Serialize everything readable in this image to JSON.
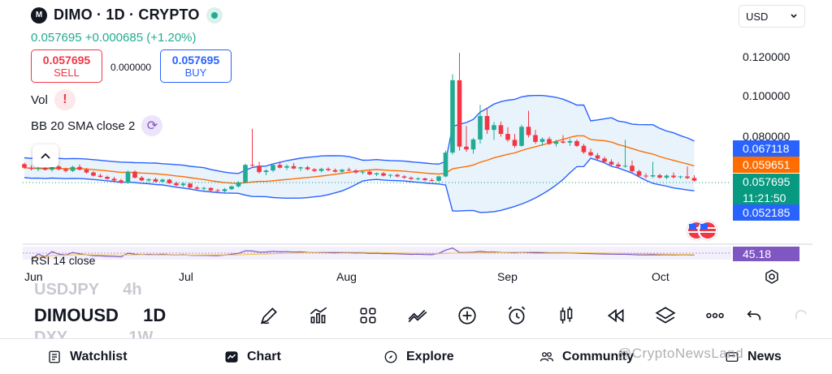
{
  "header": {
    "logo_text": "M",
    "title": "DIMO · 1D · CRYPTO",
    "price_line": "0.057695 +0.000685 (+1.20%)"
  },
  "trade": {
    "sell_value": "0.057695",
    "sell_label": "SELL",
    "spread": "0.000000",
    "buy_value": "0.057695",
    "buy_label": "BUY"
  },
  "indicators": {
    "vol_label": "Vol",
    "bb_label": "BB 20 SMA close 2",
    "rsi_label": "RSI 14 close"
  },
  "currency": {
    "value": "USD"
  },
  "price_axis": {
    "ticks": [
      "0.120000",
      "0.100000",
      "0.080000"
    ],
    "tags": {
      "upper_band": "0.067118",
      "basis": "0.059651",
      "last": "0.057695",
      "countdown": "11:21:50",
      "lower_band": "0.052185",
      "rsi": "45.18"
    }
  },
  "time_axis": {
    "labels": [
      "Jun",
      "Jul",
      "Aug",
      "Sep",
      "Oct"
    ]
  },
  "symbols_list": {
    "prev": "USDJPY",
    "prev_interval": "4h",
    "current": "DIMOUSD",
    "current_interval": "1D",
    "next": "DXY",
    "next_interval": "1W"
  },
  "toolbar": {
    "icons": [
      "pencil-icon",
      "chart-bars-icon",
      "grid-icon",
      "indicators-icon",
      "plus-icon",
      "alarm-icon",
      "candles-icon",
      "replay-icon",
      "layers-icon",
      "more-icon"
    ]
  },
  "bottom_nav": {
    "watchlist": "Watchlist",
    "chart": "Chart",
    "explore": "Explore",
    "community": "Community",
    "news": "News"
  },
  "watermark": "@CryptoNewsLand",
  "colors": {
    "up": "#22ab94",
    "down": "#f23645",
    "band": "#2962ff",
    "basis": "#ff6d00",
    "band_fill": "#e3f0fb",
    "rsi": "#7e57c2"
  },
  "chart_data": {
    "type": "candlestick",
    "x_labels": [
      "Jun",
      "Jul",
      "Aug",
      "Sep",
      "Oct"
    ],
    "y_ticks": [
      0.08,
      0.1,
      0.12
    ],
    "candles": [
      [
        0.066,
        0.0668,
        0.0636,
        0.0642
      ],
      [
        0.0642,
        0.0654,
        0.0628,
        0.0636
      ],
      [
        0.0636,
        0.0648,
        0.0624,
        0.064
      ],
      [
        0.064,
        0.0652,
        0.0628,
        0.0632
      ],
      [
        0.0632,
        0.0656,
        0.0622,
        0.0648
      ],
      [
        0.0648,
        0.0654,
        0.0628,
        0.0634
      ],
      [
        0.0634,
        0.0642,
        0.0618,
        0.0626
      ],
      [
        0.0626,
        0.0652,
        0.062,
        0.0646
      ],
      [
        0.0646,
        0.0658,
        0.0628,
        0.0632
      ],
      [
        0.0632,
        0.064,
        0.0612,
        0.0618
      ],
      [
        0.0618,
        0.0624,
        0.0598,
        0.0602
      ],
      [
        0.0602,
        0.0612,
        0.0592,
        0.0596
      ],
      [
        0.0596,
        0.0602,
        0.0582,
        0.0586
      ],
      [
        0.0586,
        0.0596,
        0.0572,
        0.0578
      ],
      [
        0.0578,
        0.0586,
        0.0562,
        0.0566
      ],
      [
        0.0566,
        0.0628,
        0.056,
        0.0622
      ],
      [
        0.0622,
        0.0628,
        0.0588,
        0.0592
      ],
      [
        0.0592,
        0.06,
        0.0574,
        0.0578
      ],
      [
        0.0578,
        0.059,
        0.057,
        0.0584
      ],
      [
        0.0584,
        0.0592,
        0.0568,
        0.0572
      ],
      [
        0.0572,
        0.0588,
        0.0566,
        0.0582
      ],
      [
        0.0582,
        0.0586,
        0.056,
        0.0564
      ],
      [
        0.0564,
        0.0572,
        0.0548,
        0.0554
      ],
      [
        0.0554,
        0.0568,
        0.0546,
        0.0562
      ],
      [
        0.0562,
        0.0566,
        0.0538,
        0.0542
      ],
      [
        0.0542,
        0.055,
        0.053,
        0.0536
      ],
      [
        0.0536,
        0.0546,
        0.0526,
        0.054
      ],
      [
        0.054,
        0.0544,
        0.0522,
        0.0528
      ],
      [
        0.0528,
        0.0536,
        0.0516,
        0.0524
      ],
      [
        0.0524,
        0.054,
        0.0518,
        0.0534
      ],
      [
        0.0534,
        0.0552,
        0.053,
        0.0548
      ],
      [
        0.0548,
        0.0574,
        0.0542,
        0.0568
      ],
      [
        0.0568,
        0.0662,
        0.0564,
        0.0656
      ],
      [
        0.0656,
        0.0838,
        0.0648,
        0.0652
      ],
      [
        0.0652,
        0.0672,
        0.0612,
        0.062
      ],
      [
        0.062,
        0.0634,
        0.0604,
        0.0628
      ],
      [
        0.0628,
        0.0662,
        0.062,
        0.0656
      ],
      [
        0.0656,
        0.0674,
        0.0638,
        0.0642
      ],
      [
        0.0642,
        0.0658,
        0.063,
        0.065
      ],
      [
        0.065,
        0.0666,
        0.0634,
        0.0638
      ],
      [
        0.0638,
        0.0648,
        0.0624,
        0.0644
      ],
      [
        0.0644,
        0.0652,
        0.0628,
        0.0634
      ],
      [
        0.0634,
        0.064,
        0.062,
        0.0626
      ],
      [
        0.0626,
        0.0642,
        0.0618,
        0.0636
      ],
      [
        0.0636,
        0.0644,
        0.0624,
        0.063
      ],
      [
        0.063,
        0.0638,
        0.0618,
        0.0622
      ],
      [
        0.0622,
        0.0636,
        0.0616,
        0.0632
      ],
      [
        0.0632,
        0.0642,
        0.0624,
        0.0628
      ],
      [
        0.0628,
        0.0634,
        0.0612,
        0.0618
      ],
      [
        0.0618,
        0.0626,
        0.0608,
        0.0622
      ],
      [
        0.0622,
        0.0628,
        0.0604,
        0.0608
      ],
      [
        0.0608,
        0.0618,
        0.06,
        0.0614
      ],
      [
        0.0614,
        0.062,
        0.0598,
        0.0602
      ],
      [
        0.0602,
        0.061,
        0.0592,
        0.0606
      ],
      [
        0.0606,
        0.0612,
        0.0594,
        0.0598
      ],
      [
        0.0598,
        0.0604,
        0.0586,
        0.0592
      ],
      [
        0.0592,
        0.0598,
        0.058,
        0.0586
      ],
      [
        0.0586,
        0.0594,
        0.0578,
        0.0588
      ],
      [
        0.0588,
        0.0592,
        0.0574,
        0.058
      ],
      [
        0.058,
        0.0588,
        0.0572,
        0.0576
      ],
      [
        0.0576,
        0.0602,
        0.0572,
        0.0598
      ],
      [
        0.0598,
        0.0728,
        0.0594,
        0.0718
      ],
      [
        0.0718,
        0.1112,
        0.0708,
        0.1082
      ],
      [
        0.1082,
        0.122,
        0.0728,
        0.0748
      ],
      [
        0.0748,
        0.0852,
        0.0722,
        0.0734
      ],
      [
        0.0734,
        0.0792,
        0.0712,
        0.0784
      ],
      [
        0.0784,
        0.0958,
        0.0762,
        0.0902
      ],
      [
        0.0902,
        0.0942,
        0.0812,
        0.0832
      ],
      [
        0.0832,
        0.0872,
        0.0782,
        0.0856
      ],
      [
        0.0856,
        0.0874,
        0.0798,
        0.0812
      ],
      [
        0.0812,
        0.0846,
        0.0772,
        0.0782
      ],
      [
        0.0782,
        0.0812,
        0.0742,
        0.0752
      ],
      [
        0.0752,
        0.0858,
        0.0748,
        0.0848
      ],
      [
        0.0848,
        0.0928,
        0.0794,
        0.0806
      ],
      [
        0.0806,
        0.0832,
        0.0762,
        0.0772
      ],
      [
        0.0772,
        0.0794,
        0.0752,
        0.0786
      ],
      [
        0.0786,
        0.0798,
        0.0756,
        0.0762
      ],
      [
        0.0762,
        0.0782,
        0.0748,
        0.0774
      ],
      [
        0.0774,
        0.0806,
        0.0762,
        0.0768
      ],
      [
        0.0768,
        0.0788,
        0.0752,
        0.0776
      ],
      [
        0.0776,
        0.0784,
        0.0746,
        0.0752
      ],
      [
        0.0752,
        0.0762,
        0.0712,
        0.072
      ],
      [
        0.072,
        0.0738,
        0.0698,
        0.0704
      ],
      [
        0.0704,
        0.0716,
        0.0682,
        0.0688
      ],
      [
        0.0688,
        0.0698,
        0.0666,
        0.0672
      ],
      [
        0.0672,
        0.0684,
        0.0652,
        0.0658
      ],
      [
        0.0658,
        0.067,
        0.0642,
        0.0648
      ],
      [
        0.0648,
        0.0782,
        0.0642,
        0.0652
      ],
      [
        0.0652,
        0.0678,
        0.0618,
        0.0624
      ],
      [
        0.0624,
        0.0632,
        0.0596,
        0.0602
      ],
      [
        0.0602,
        0.0614,
        0.0588,
        0.0598
      ],
      [
        0.0598,
        0.0672,
        0.059,
        0.0604
      ],
      [
        0.0604,
        0.0612,
        0.0586,
        0.0592
      ],
      [
        0.0592,
        0.0608,
        0.0584,
        0.0602
      ],
      [
        0.0602,
        0.0618,
        0.0588,
        0.0594
      ],
      [
        0.0594,
        0.0602,
        0.0586,
        0.0598
      ],
      [
        0.0598,
        0.0648,
        0.0584,
        0.059
      ],
      [
        0.059,
        0.0604,
        0.0572,
        0.0577
      ]
    ]
  }
}
